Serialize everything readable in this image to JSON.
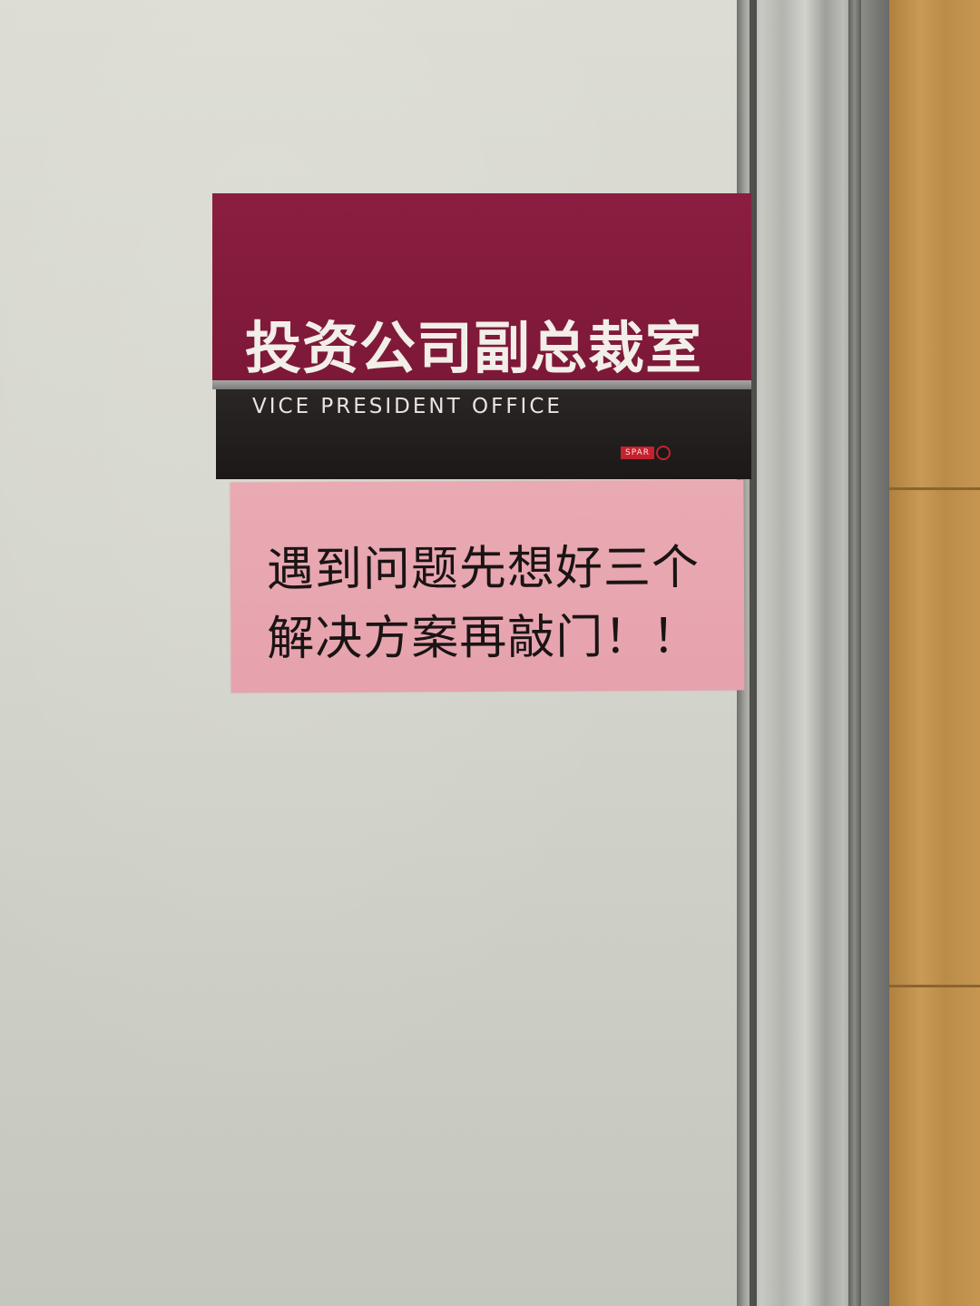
{
  "sign": {
    "title_cn": "投资公司副总裁室",
    "title_en": "VICE PRESIDENT OFFICE",
    "brand": "SPAR",
    "colors": {
      "panel": "#7d1838",
      "band": "#1c1818",
      "brand": "#c4222d"
    }
  },
  "note": {
    "line1": "遇到问题先想好三个",
    "line2": "解决方案再敲门！！",
    "color": "#e8a7b0"
  }
}
